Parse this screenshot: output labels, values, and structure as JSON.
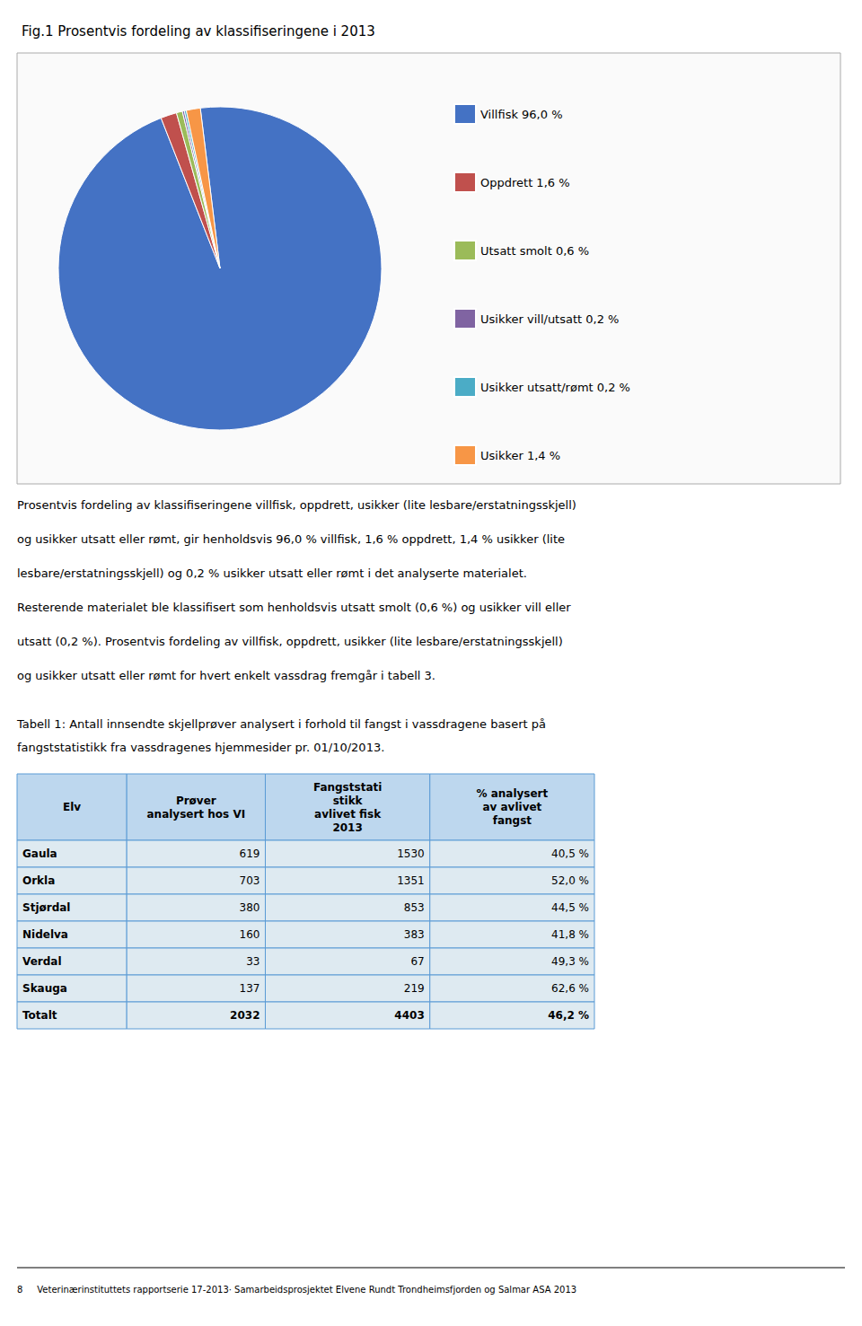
{
  "chart_data": [
    {
      "type": "pie",
      "title": "Fig.1 Prosentvis fordeling av klassifiseringene i 2013",
      "categories": [
        "Villfisk 96,0 %",
        "Oppdrett 1,6 %",
        "Utsatt smolt 0,6 %",
        "Usikker vill/utsatt 0,2 %",
        "Usikker utsatt/rømt 0,2 %",
        "Usikker 1,4 %"
      ],
      "values": [
        96.0,
        1.6,
        0.6,
        0.2,
        0.2,
        1.4
      ],
      "colors": [
        "#4472C4",
        "#C0504D",
        "#9BBB59",
        "#8064A2",
        "#4BACC6",
        "#F79646"
      ],
      "legend": "right",
      "annotations": [
        "Prosentvis fordeling av klassifiseringene villfisk, oppdrett, usikker (lite lesbare/erstatningsskjell)",
        "og usikker utsatt eller rømt, gir henholdsvis 96,0 % villfisk, 1,6 % oppdrett, 1,4 % usikker (lite",
        "lesbare/erstatningsskjell) og 0,2 % usikker utsatt eller rømt i det analyserte materialet.",
        "Resterende materialet ble klassifisert som henholdsvis utsatt smolt (0,6 %) og usikker vill eller",
        "utsatt (0,2 %). Prosentvis fordeling av villfisk, oppdrett, usikker (lite lesbare/erstatningsskjell)",
        "og usikker utsatt eller rømt for hvert enkelt vassdrag fremgår i tabell 3."
      ]
    },
    {
      "type": "table",
      "annotations": [
        "Tabell 1: Antall innsendte skjellprøver analysert i forhold til fangst i vassdragene basert på",
        "fangststatistikk fra vassdragenes hjemmesider pr. 01/10/2013."
      ],
      "columns": [
        "Elv",
        "Prøver\nanalysert hos VI",
        "Fangststati\nstikk\navlivet fisk\n2013",
        "% analysert\nav avlivet\nfangst"
      ],
      "rows": [
        [
          "Gaula",
          619,
          1530,
          {
            "value": 40.5,
            "label": "40,5 %"
          }
        ],
        [
          "Orkla",
          703,
          1351,
          {
            "value": 52.0,
            "label": "52,0 %"
          }
        ],
        [
          "Stjørdal",
          380,
          853,
          {
            "value": 44.5,
            "label": "44,5 %"
          }
        ],
        [
          "Nidelva",
          160,
          383,
          {
            "value": 41.8,
            "label": "41,8 %"
          }
        ],
        [
          "Verdal",
          33,
          67,
          {
            "value": 49.3,
            "label": "49,3 %"
          }
        ],
        [
          "Skauga",
          137,
          219,
          {
            "value": 62.6,
            "label": "62,6 %"
          }
        ],
        [
          "Totalt",
          2032,
          4403,
          {
            "value": 46.2,
            "label": "46,2 %"
          }
        ]
      ],
      "colors": [
        "#BDD7EE",
        "#DEEAF1"
      ],
      "color": "#5B9BD5"
    },
    {
      "type": "footer",
      "annotations": [
        "8     Veterinærinstituttets rapportserie 17-2013· Samarbeidsprosjektet Elvene Rundt Trondheimsfjorden og Salmar ASA 2013"
      ]
    }
  ]
}
